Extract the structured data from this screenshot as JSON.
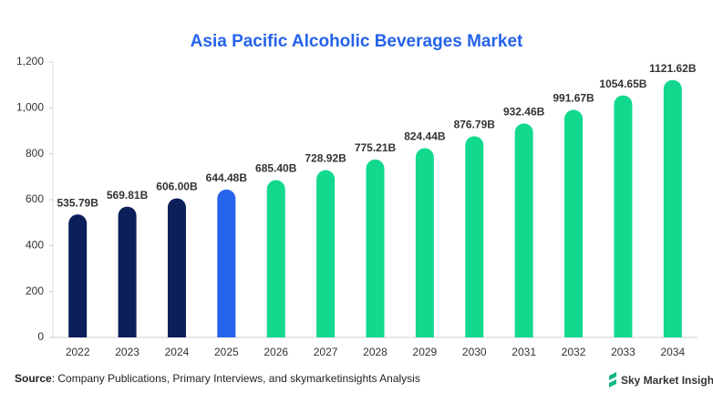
{
  "chart_data": {
    "type": "bar",
    "title": "Asia Pacific Alcoholic Beverages Market",
    "categories": [
      "2022",
      "2023",
      "2024",
      "2025",
      "2026",
      "2027",
      "2028",
      "2029",
      "2030",
      "2031",
      "2032",
      "2033",
      "2034"
    ],
    "values": [
      535.79,
      569.81,
      606.0,
      644.48,
      685.4,
      728.92,
      775.21,
      824.44,
      876.79,
      932.46,
      991.67,
      1054.65,
      1121.62
    ],
    "value_labels": [
      "535.79B",
      "569.81B",
      "606.00B",
      "644.48B",
      "685.40B",
      "728.92B",
      "775.21B",
      "824.44B",
      "876.79B",
      "932.46B",
      "991.67B",
      "1054.65B",
      "1121.62B"
    ],
    "colors": [
      "#0c1f5b",
      "#0c1f5b",
      "#0c1f5b",
      "#2563eb",
      "#12d98e",
      "#12d98e",
      "#12d98e",
      "#12d98e",
      "#12d98e",
      "#12d98e",
      "#12d98e",
      "#12d98e",
      "#12d98e"
    ],
    "ylim": [
      0,
      1200
    ],
    "yticks": [
      0,
      200,
      400,
      600,
      800,
      {
        "value": 1000,
        "label": "1,000"
      },
      {
        "value": 1200,
        "label": "1,200"
      }
    ],
    "grid": false
  },
  "source_label": "Source",
  "source_text": ": Company Publications, Primary Interviews, and skymarketinsights Analysis",
  "logo_text": "Sky Market Insights"
}
